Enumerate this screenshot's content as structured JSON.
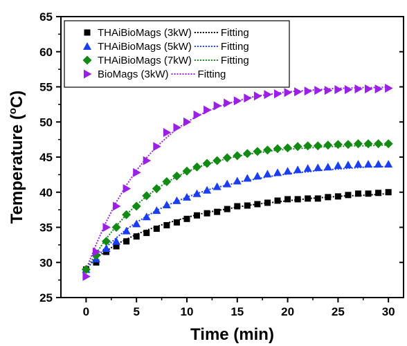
{
  "chart_data": {
    "type": "scatter",
    "title": "",
    "xlabel": "Time (min)",
    "ylabel_main": "Temperature (",
    "ylabel_sup": "o",
    "ylabel_tail": "C)",
    "xlim": [
      -2.5,
      31.5
    ],
    "ylim": [
      25,
      65
    ],
    "xticks": [
      0,
      5,
      10,
      15,
      20,
      25,
      30
    ],
    "yticks": [
      25,
      30,
      35,
      40,
      45,
      50,
      55,
      60,
      65
    ],
    "grid": false,
    "legend_position": "top-left",
    "fit_label": "Fitting",
    "series": [
      {
        "name": "THAiBioMags (3kW)",
        "marker": "square",
        "color": "#000000",
        "x": [
          0,
          1,
          2,
          3,
          4,
          5,
          6,
          7,
          8,
          9,
          10,
          11,
          12,
          13,
          14,
          15,
          16,
          17,
          18,
          19,
          20,
          21,
          22,
          23,
          24,
          25,
          26,
          27,
          28,
          29,
          30
        ],
        "values": [
          29,
          30,
          31.5,
          32.3,
          33,
          33.7,
          34.2,
          34.8,
          35.3,
          35.7,
          36.2,
          36.7,
          37,
          37.2,
          37.6,
          38,
          38.1,
          38.3,
          38.5,
          38.8,
          39,
          39,
          39.1,
          39.1,
          39.3,
          39.4,
          39.6,
          39.8,
          39.8,
          39.9,
          40
        ],
        "fit": [
          29,
          30.7,
          31.6,
          32.6,
          33.3,
          34,
          34.6,
          35.1,
          35.6,
          36,
          36.4,
          36.8,
          37.1,
          37.4,
          37.6,
          37.9,
          38.1,
          38.3,
          38.5,
          38.6,
          38.8,
          38.9,
          39.1,
          39.2,
          39.3,
          39.4,
          39.5,
          39.5,
          39.6,
          39.7,
          39.8
        ]
      },
      {
        "name": "THAiBioMags (5kW)",
        "marker": "triangle-up",
        "color": "#1a3ef0",
        "x": [
          0,
          1,
          2,
          3,
          4,
          5,
          6,
          7,
          8,
          9,
          10,
          11,
          12,
          13,
          14,
          15,
          16,
          17,
          18,
          19,
          20,
          21,
          22,
          23,
          24,
          25,
          26,
          27,
          28,
          29,
          30
        ],
        "values": [
          29,
          30.5,
          32,
          33,
          34.5,
          35.5,
          36.5,
          37.4,
          38.2,
          38.8,
          39.3,
          39.8,
          40.3,
          40.8,
          41.2,
          41.6,
          42,
          42.3,
          42.6,
          42.8,
          43,
          43.2,
          43.4,
          43.5,
          43.6,
          43.8,
          43.9,
          44,
          44,
          44,
          44
        ],
        "fit": [
          29,
          30.7,
          32.2,
          33.5,
          34.7,
          35.7,
          36.6,
          37.4,
          38.1,
          38.7,
          39.3,
          39.8,
          40.3,
          40.7,
          41,
          41.4,
          41.7,
          41.9,
          42.2,
          42.4,
          42.6,
          42.8,
          42.9,
          43.1,
          43.2,
          43.3,
          43.4,
          43.5,
          43.6,
          43.6,
          43.7
        ]
      },
      {
        "name": "THAiBioMags (7kW)",
        "marker": "diamond",
        "color": "#138a13",
        "x": [
          0,
          1,
          2,
          3,
          4,
          5,
          6,
          7,
          8,
          9,
          10,
          11,
          12,
          13,
          14,
          15,
          16,
          17,
          18,
          19,
          20,
          21,
          22,
          23,
          24,
          25,
          26,
          27,
          28,
          29,
          30
        ],
        "values": [
          29,
          31,
          33,
          35,
          36.8,
          38,
          39.5,
          40.5,
          41.5,
          42.3,
          43,
          43.6,
          44.1,
          44.5,
          44.9,
          45.2,
          45.5,
          45.8,
          46,
          46.2,
          46.3,
          46.5,
          46.6,
          46.6,
          46.7,
          46.8,
          46.8,
          46.9,
          46.9,
          46.9,
          46.9
        ],
        "fit": [
          29,
          31.3,
          33.4,
          35.2,
          36.8,
          38.2,
          39.4,
          40.5,
          41.4,
          42.2,
          42.9,
          43.5,
          44,
          44.4,
          44.8,
          45.1,
          45.4,
          45.6,
          45.8,
          46,
          46.1,
          46.2,
          46.3,
          46.4,
          46.5,
          46.5,
          46.6,
          46.6,
          46.6,
          46.7,
          46.7
        ]
      },
      {
        "name": "BioMags (3kW)",
        "marker": "triangle-right",
        "color": "#9b1fe6",
        "x": [
          0,
          1,
          2,
          3,
          4,
          5,
          6,
          7,
          8,
          9,
          10,
          11,
          12,
          13,
          14,
          15,
          16,
          17,
          18,
          19,
          20,
          21,
          22,
          23,
          24,
          25,
          26,
          27,
          28,
          29,
          30
        ],
        "values": [
          28,
          31.5,
          35,
          38,
          40.5,
          42.8,
          44.5,
          46.5,
          48.5,
          49.2,
          50,
          51,
          51.7,
          52.3,
          52.7,
          53,
          53.4,
          53.7,
          53.9,
          54,
          54.2,
          54.3,
          54.4,
          54.5,
          54.5,
          54.6,
          54.6,
          54.7,
          54.7,
          54.7,
          54.8
        ],
        "fit": [
          29,
          32.6,
          35.8,
          38.6,
          41,
          43.1,
          44.9,
          46.5,
          47.8,
          49,
          50,
          50.8,
          51.5,
          52.1,
          52.6,
          53,
          53.4,
          53.7,
          53.9,
          54.1,
          54.3,
          54.4,
          54.5,
          54.6,
          54.7,
          54.8,
          54.8,
          54.9,
          54.9,
          54.9,
          55
        ]
      }
    ]
  }
}
